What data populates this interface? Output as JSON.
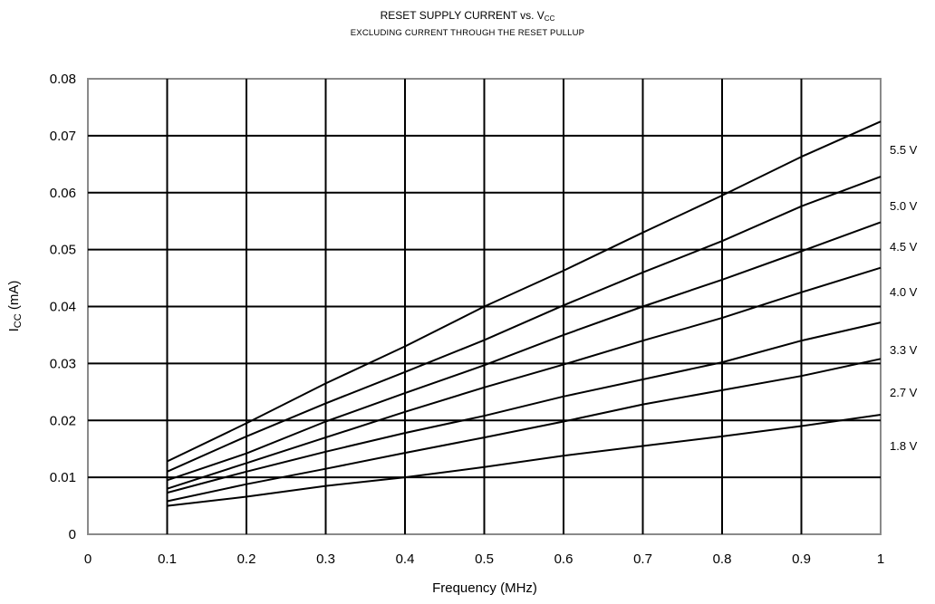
{
  "chart_data": {
    "type": "line",
    "title_main": "RESET SUPPLY CURRENT vs. V",
    "title_sub": "CC",
    "subtitle": "EXCLUDING CURRENT THROUGH THE RESET PULLUP",
    "xlabel": "Frequency (MHz)",
    "ylabel_main": "I",
    "ylabel_sub": "CC",
    "ylabel_unit": " (mA)",
    "xlim": [
      0,
      1
    ],
    "ylim": [
      0,
      0.08
    ],
    "x_ticks": [
      "0",
      "0.1",
      "0.2",
      "0.3",
      "0.4",
      "0.5",
      "0.6",
      "0.7",
      "0.8",
      "0.9",
      "1"
    ],
    "y_ticks": [
      "0",
      "0.01",
      "0.02",
      "0.03",
      "0.04",
      "0.05",
      "0.06",
      "0.07",
      "0.08"
    ],
    "grid": true,
    "legend_placement": "right, inline labels",
    "line_color": "#000000",
    "x": [
      0.1,
      0.2,
      0.3,
      0.4,
      0.5,
      0.6,
      0.7,
      0.8,
      0.9,
      1.0
    ],
    "series": [
      {
        "name": "5.5 V",
        "values": [
          0.0128,
          0.0195,
          0.0265,
          0.033,
          0.04,
          0.0463,
          0.053,
          0.0595,
          0.0663,
          0.0725
        ]
      },
      {
        "name": "5.0 V",
        "values": [
          0.011,
          0.0172,
          0.023,
          0.0285,
          0.0341,
          0.0402,
          0.046,
          0.0515,
          0.0576,
          0.0628
        ]
      },
      {
        "name": "4.5 V",
        "values": [
          0.0095,
          0.0142,
          0.0198,
          0.0248,
          0.0297,
          0.035,
          0.04,
          0.0447,
          0.0497,
          0.0548
        ]
      },
      {
        "name": "4.0 V",
        "values": [
          0.008,
          0.0125,
          0.017,
          0.0215,
          0.0258,
          0.0298,
          0.034,
          0.038,
          0.0425,
          0.0468
        ]
      },
      {
        "name": "3.3 V",
        "values": [
          0.0073,
          0.011,
          0.0145,
          0.0178,
          0.0208,
          0.0242,
          0.0272,
          0.0302,
          0.034,
          0.0372
        ]
      },
      {
        "name": "2.7 V",
        "values": [
          0.0058,
          0.0088,
          0.0115,
          0.0143,
          0.017,
          0.0198,
          0.0228,
          0.0253,
          0.0278,
          0.0308
        ]
      },
      {
        "name": "1.8 V",
        "values": [
          0.005,
          0.0066,
          0.0085,
          0.01,
          0.0118,
          0.0138,
          0.0155,
          0.0172,
          0.019,
          0.021
        ]
      }
    ]
  }
}
